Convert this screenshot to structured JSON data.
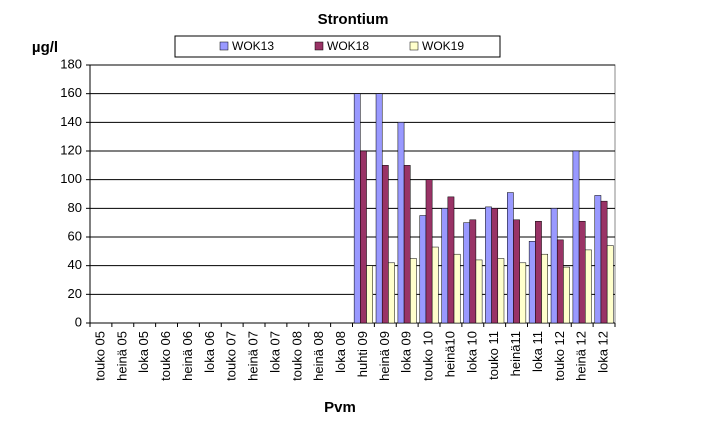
{
  "chart_data": {
    "type": "bar",
    "title": "Strontium",
    "ylabel": "µg/l",
    "xlabel": "Pvm",
    "categories": [
      "touko 05",
      "heinä 05",
      "loka 05",
      "touko 06",
      "heinä 06",
      "loka 06",
      "touko 07",
      "heinä 07",
      "loka 07",
      "touko 08",
      "heinä 08",
      "loka 08",
      "huhti 09",
      "heinä 09",
      "loka 09",
      "touko 10",
      "heinä10",
      "loka 10",
      "touko 11",
      "heinä11",
      "loka 11",
      "touko 12",
      "heinä 12",
      "loka 12"
    ],
    "series": [
      {
        "name": "WOK13",
        "color": "#9999ff",
        "values": [
          null,
          null,
          null,
          null,
          null,
          null,
          null,
          null,
          null,
          null,
          null,
          null,
          160,
          160,
          140,
          75,
          80,
          70,
          81,
          91,
          57,
          80,
          120,
          89
        ]
      },
      {
        "name": "WOK18",
        "color": "#993366",
        "values": [
          null,
          null,
          null,
          null,
          null,
          null,
          null,
          null,
          null,
          null,
          null,
          null,
          120,
          110,
          110,
          100,
          88,
          72,
          80,
          72,
          71,
          58,
          71,
          85
        ]
      },
      {
        "name": "WOK19",
        "color": "#ffffcc",
        "values": [
          null,
          null,
          null,
          null,
          null,
          null,
          null,
          null,
          null,
          null,
          null,
          null,
          40,
          42,
          45,
          53,
          48,
          44,
          45,
          42,
          48,
          39,
          51,
          54
        ]
      }
    ],
    "ylim": [
      0,
      180
    ],
    "yticks": [
      0,
      20,
      40,
      60,
      80,
      100,
      120,
      140,
      160,
      180
    ],
    "grid": true,
    "legend": "top"
  }
}
